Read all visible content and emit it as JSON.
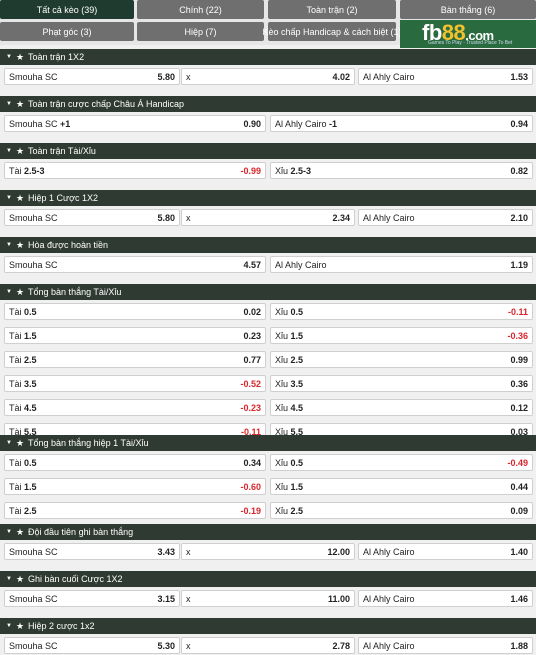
{
  "tabs": [
    {
      "label": "Tất cả kèo (39)",
      "active": true
    },
    {
      "label": "Chính (22)",
      "active": false
    },
    {
      "label": "Toàn trận (2)",
      "active": false
    },
    {
      "label": "Bàn thắng (6)",
      "active": false
    },
    {
      "label": "Phạt góc (3)",
      "active": false
    },
    {
      "label": "Hiệp (7)",
      "active": false
    },
    {
      "label": "Kèo chấp Handicap & cách biệt (1)",
      "active": false
    }
  ],
  "logo": {
    "text_a": "fb",
    "text_b": "88",
    "text_c": ".com",
    "tagline": "Games To Play · Trusted Place To Bet"
  },
  "sections": [
    {
      "title": "Toàn trận 1X2",
      "cols": 3,
      "rows": [
        [
          {
            "label": "Smouha SC",
            "bold": "",
            "odd": "5.80"
          },
          {
            "label": "x",
            "bold": "",
            "odd": "4.02"
          },
          {
            "label": "Al Ahly Cairo",
            "bold": "",
            "odd": "1.53"
          }
        ]
      ]
    },
    {
      "title": "Toàn trận cược chấp Châu Á Handicap",
      "cols": 2,
      "rows": [
        [
          {
            "label": "Smouha SC ",
            "bold": "+1",
            "odd": "0.90"
          },
          {
            "label": "Al Ahly Cairo ",
            "bold": "-1",
            "odd": "0.94"
          }
        ]
      ]
    },
    {
      "title": "Toàn trận Tài/Xỉu",
      "cols": 2,
      "rows": [
        [
          {
            "label": "Tài ",
            "bold": "2.5-3",
            "odd": "-0.99"
          },
          {
            "label": "Xỉu ",
            "bold": "2.5-3",
            "odd": "0.82"
          }
        ]
      ]
    },
    {
      "title": "Hiệp 1 Cược 1X2",
      "cols": 3,
      "rows": [
        [
          {
            "label": "Smouha SC",
            "bold": "",
            "odd": "5.80"
          },
          {
            "label": "x",
            "bold": "",
            "odd": "2.34"
          },
          {
            "label": "Al Ahly Cairo",
            "bold": "",
            "odd": "2.10"
          }
        ]
      ]
    },
    {
      "title": "Hòa được hoàn tiền",
      "cols": 2,
      "rows": [
        [
          {
            "label": "Smouha SC",
            "bold": "",
            "odd": "4.57"
          },
          {
            "label": "Al Ahly Cairo",
            "bold": "",
            "odd": "1.19"
          }
        ]
      ]
    },
    {
      "title": "Tổng bàn thắng Tài/Xỉu",
      "cols": 2,
      "rows": [
        [
          {
            "label": "Tài ",
            "bold": "0.5",
            "odd": "0.02"
          },
          {
            "label": "Xỉu ",
            "bold": "0.5",
            "odd": "-0.11"
          }
        ],
        [
          {
            "label": "Tài ",
            "bold": "1.5",
            "odd": "0.23"
          },
          {
            "label": "Xỉu ",
            "bold": "1.5",
            "odd": "-0.36"
          }
        ],
        [
          {
            "label": "Tài ",
            "bold": "2.5",
            "odd": "0.77"
          },
          {
            "label": "Xỉu ",
            "bold": "2.5",
            "odd": "0.99"
          }
        ],
        [
          {
            "label": "Tài ",
            "bold": "3.5",
            "odd": "-0.52"
          },
          {
            "label": "Xỉu ",
            "bold": "3.5",
            "odd": "0.36"
          }
        ],
        [
          {
            "label": "Tài ",
            "bold": "4.5",
            "odd": "-0.23"
          },
          {
            "label": "Xỉu ",
            "bold": "4.5",
            "odd": "0.12"
          }
        ],
        [
          {
            "label": "Tài ",
            "bold": "5.5",
            "odd": "-0.11"
          },
          {
            "label": "Xỉu ",
            "bold": "5.5",
            "odd": "0.03"
          }
        ]
      ]
    },
    {
      "title": "Tổng bàn thắng hiệp 1 Tài/Xỉu",
      "cols": 2,
      "rows": [
        [
          {
            "label": "Tài ",
            "bold": "0.5",
            "odd": "0.34"
          },
          {
            "label": "Xỉu ",
            "bold": "0.5",
            "odd": "-0.49"
          }
        ],
        [
          {
            "label": "Tài ",
            "bold": "1.5",
            "odd": "-0.60"
          },
          {
            "label": "Xỉu ",
            "bold": "1.5",
            "odd": "0.44"
          }
        ],
        [
          {
            "label": "Tài ",
            "bold": "2.5",
            "odd": "-0.19"
          },
          {
            "label": "Xỉu ",
            "bold": "2.5",
            "odd": "0.09"
          }
        ]
      ]
    },
    {
      "title": "Đội đầu tiên ghi bàn thắng",
      "cols": 3,
      "rows": [
        [
          {
            "label": "Smouha SC",
            "bold": "",
            "odd": "3.43"
          },
          {
            "label": "x",
            "bold": "",
            "odd": "12.00"
          },
          {
            "label": "Al Ahly Cairo",
            "bold": "",
            "odd": "1.40"
          }
        ]
      ]
    },
    {
      "title": "Ghi bàn cuối Cược 1X2",
      "cols": 3,
      "rows": [
        [
          {
            "label": "Smouha SC",
            "bold": "",
            "odd": "3.15"
          },
          {
            "label": "x",
            "bold": "",
            "odd": "11.00"
          },
          {
            "label": "Al Ahly Cairo",
            "bold": "",
            "odd": "1.46"
          }
        ]
      ]
    },
    {
      "title": "Hiệp 2 cược 1x2",
      "cols": 3,
      "rows": [
        [
          {
            "label": "Smouha SC",
            "bold": "",
            "odd": "5.30"
          },
          {
            "label": "x",
            "bold": "",
            "odd": "2.78"
          },
          {
            "label": "Al Ahly Cairo",
            "bold": "",
            "odd": "1.88"
          }
        ]
      ]
    }
  ],
  "colors": {
    "header": "#2f3a33",
    "active_tab": "#1f3b2f",
    "tab": "#6f6f6f",
    "negative": "#d9262c"
  }
}
